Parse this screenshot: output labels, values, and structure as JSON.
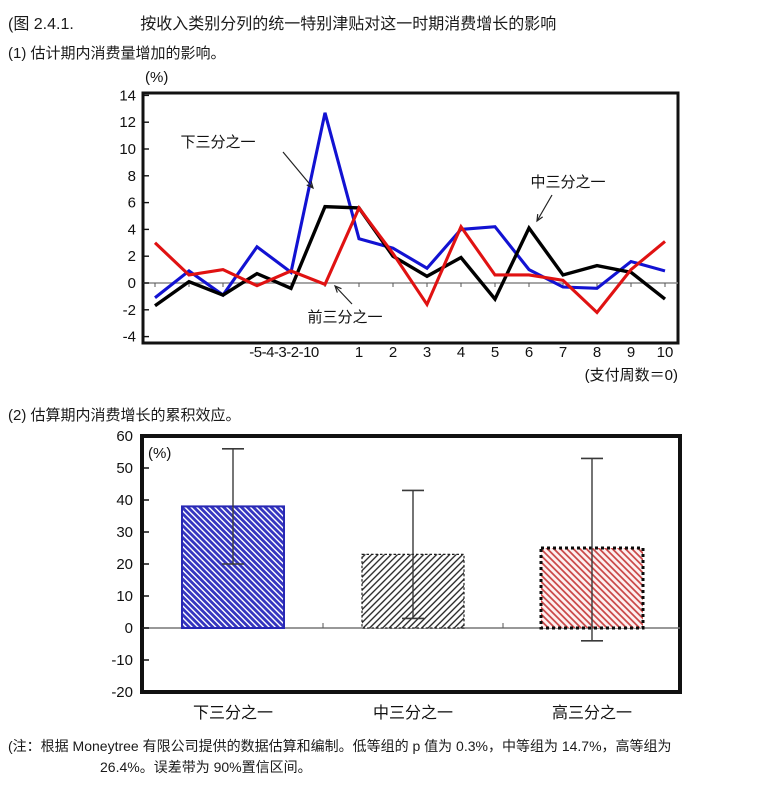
{
  "page": {
    "figure_tag": "(图 2.4.1.",
    "title": "按收入类别分列的统一特别津贴对这一时期消费增长的影响",
    "note_line1": "(注：根据 Moneytree 有限公司提供的数据估算和编制。低等组的 p 值为 0.3%，中等组为 14.7%，高等组为",
    "note_line2": "26.4%。误差带为 90%置信区间。"
  },
  "chart_data": [
    {
      "type": "line",
      "panel_label": "(1) 估计期内消费量增加的影响。",
      "unit_label": "(%)",
      "x_axis_note": "(支付周数＝0)",
      "x": [
        -5,
        -4,
        -3,
        -2,
        -1,
        0,
        1,
        2,
        3,
        4,
        5,
        6,
        7,
        8,
        9,
        10
      ],
      "x_tick_labels_compressed": "-5-4-3-2-10",
      "x_tick_labels": [
        "1",
        "2",
        "3",
        "4",
        "5",
        "6",
        "7",
        "8",
        "9",
        "10"
      ],
      "ylim": [
        -4,
        14
      ],
      "yticks": [
        14,
        12,
        10,
        8,
        6,
        4,
        2,
        0,
        -2,
        -4
      ],
      "grid": "zero-line-only",
      "legend_position": "inline-annotations",
      "series": [
        {
          "name": "下三分之一",
          "color": "#1212d2",
          "values": [
            -1.1,
            0.9,
            -0.9,
            2.7,
            0.8,
            12.7,
            3.3,
            2.6,
            1.1,
            4.0,
            4.2,
            1.0,
            -0.3,
            -0.4,
            1.6,
            0.9
          ]
        },
        {
          "name": "中三分之一",
          "color": "#000000",
          "values": [
            -1.7,
            0.1,
            -0.9,
            0.7,
            -0.4,
            5.7,
            5.6,
            2.0,
            0.5,
            1.9,
            -1.2,
            4.1,
            0.6,
            1.3,
            0.8,
            -1.2
          ]
        },
        {
          "name": "前三分之一",
          "color": "#e01212",
          "values": [
            3.0,
            0.6,
            1.0,
            -0.2,
            0.9,
            -0.1,
            5.6,
            2.2,
            -1.6,
            4.2,
            0.6,
            0.6,
            0.2,
            -2.2,
            1.0,
            3.1
          ]
        }
      ],
      "annotations": [
        {
          "text": "下三分之一",
          "series": "下三分之一"
        },
        {
          "text": "中三分之一",
          "series": "中三分之一"
        },
        {
          "text": "前三分之一",
          "series": "前三分之一"
        }
      ]
    },
    {
      "type": "bar",
      "panel_label": "(2) 估算期内消费增长的累积效应。",
      "unit_label": "(%)",
      "categories": [
        "下三分之一",
        "中三分之一",
        "高三分之一"
      ],
      "values": [
        38,
        23,
        25
      ],
      "ci_low": [
        20,
        3,
        -4
      ],
      "ci_high": [
        56,
        43,
        53
      ],
      "ylim": [
        -20,
        60
      ],
      "yticks": [
        60,
        50,
        40,
        30,
        20,
        10,
        0,
        -10,
        -20
      ],
      "bar_styles": [
        {
          "hatch": "blue-weave",
          "hatch_color": "#3636c0",
          "border": "solid",
          "border_color": "#2828b4"
        },
        {
          "hatch": "black-diagonal",
          "hatch_color": "#1d1d1d",
          "border": "dashed-thin",
          "border_color": "#1d1d1d"
        },
        {
          "hatch": "red-diagonal",
          "hatch_color": "#c94444",
          "border": "dotted-thick",
          "border_color": "#0a0a0a"
        }
      ],
      "error_bar_color": "#3a3a3a"
    }
  ]
}
